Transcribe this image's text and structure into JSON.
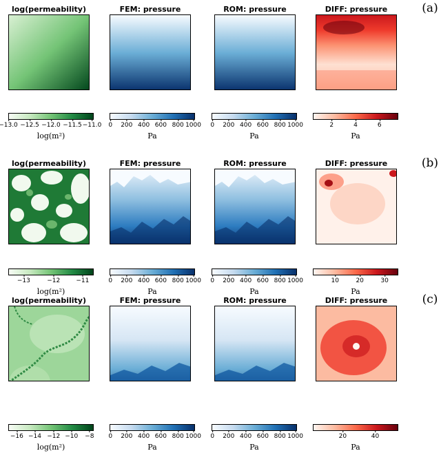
{
  "colors": {
    "greens": [
      "#f7fcf5",
      "#c7e9c0",
      "#74c476",
      "#238b45",
      "#00441b"
    ],
    "blues": [
      "#f7fbff",
      "#c6dbef",
      "#6baed6",
      "#2171b5",
      "#08306b"
    ],
    "reds": [
      "#fff5f0",
      "#fcbba1",
      "#fb6a4a",
      "#cb181d",
      "#67000d"
    ]
  },
  "rows": [
    {
      "label": "(a)",
      "panels": [
        {
          "title": "log(permeability)",
          "colormap": "greens",
          "ticks": [
            "−13.0",
            "−12.5",
            "−12.0",
            "−11.5",
            "−11.0"
          ],
          "unit": "log(m²)"
        },
        {
          "title": "FEM: pressure",
          "colormap": "blues",
          "ticks": [
            "0",
            "200",
            "400",
            "600",
            "800",
            "1000"
          ],
          "unit": "Pa"
        },
        {
          "title": "ROM: pressure",
          "colormap": "blues",
          "ticks": [
            "0",
            "200",
            "400",
            "600",
            "800",
            "1000"
          ],
          "unit": "Pa"
        },
        {
          "title": "DIFF: pressure",
          "colormap": "reds",
          "ticks": [
            "2",
            "4",
            "6"
          ],
          "unit": "Pa"
        }
      ]
    },
    {
      "label": "(b)",
      "panels": [
        {
          "title": "log(permeability)",
          "colormap": "greens",
          "ticks": [
            "−13",
            "−12",
            "−11"
          ],
          "unit": "log(m²)"
        },
        {
          "title": "FEM: pressure",
          "colormap": "blues",
          "ticks": [
            "0",
            "200",
            "400",
            "600",
            "800",
            "1000"
          ],
          "unit": "Pa"
        },
        {
          "title": "ROM: pressure",
          "colormap": "blues",
          "ticks": [
            "0",
            "200",
            "400",
            "600",
            "800",
            "1000"
          ],
          "unit": "Pa"
        },
        {
          "title": "DIFF: pressure",
          "colormap": "reds",
          "ticks": [
            "10",
            "20",
            "30"
          ],
          "unit": "Pa"
        }
      ]
    },
    {
      "label": "(c)",
      "panels": [
        {
          "title": "log(permeability)",
          "colormap": "greens",
          "ticks": [
            "−16",
            "−14",
            "−12",
            "−10",
            "−8"
          ],
          "unit": "log(m²)"
        },
        {
          "title": "FEM: pressure",
          "colormap": "blues",
          "ticks": [
            "0",
            "200",
            "400",
            "600",
            "800",
            "1000"
          ],
          "unit": "Pa"
        },
        {
          "title": "ROM: pressure",
          "colormap": "blues",
          "ticks": [
            "0",
            "200",
            "400",
            "600",
            "800",
            "1000"
          ],
          "unit": "Pa"
        },
        {
          "title": "DIFF: pressure",
          "colormap": "reds",
          "ticks": [
            "20",
            "40"
          ],
          "unit": "Pa"
        }
      ]
    }
  ]
}
